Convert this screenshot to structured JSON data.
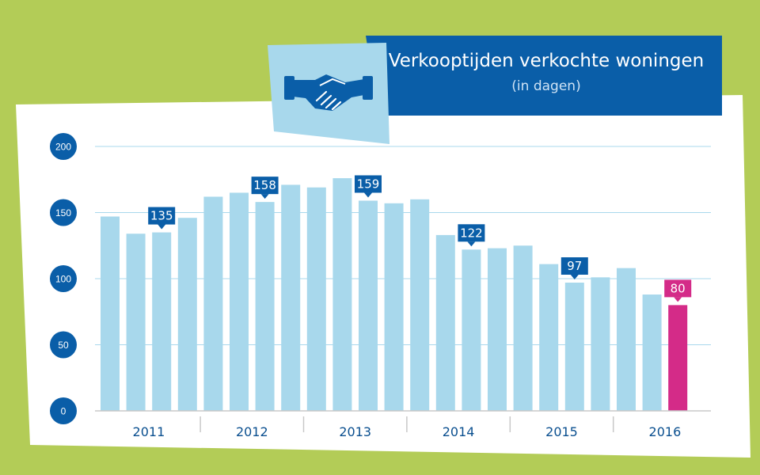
{
  "header": {
    "title": "Verkooptijden verkochte woningen",
    "subtitle": "(in dagen)",
    "icon": "handshake-icon"
  },
  "colors": {
    "background": "#b3cc57",
    "panel": "#ffffff",
    "banner": "#0a5ea8",
    "icon_box": "#a8d8ec",
    "bar": "#a8d8ec",
    "highlight": "#d42b88",
    "label_blue": "#0a5ea8",
    "grid": "#a8d8ec"
  },
  "chart_data": {
    "type": "bar",
    "title": "Verkooptijden verkochte woningen",
    "subtitle": "(in dagen)",
    "xlabel": "",
    "ylabel": "",
    "ylim": [
      0,
      200
    ],
    "yticks": [
      0,
      50,
      100,
      150,
      200
    ],
    "grid": true,
    "years": [
      "2011",
      "2012",
      "2013",
      "2014",
      "2015",
      "2016"
    ],
    "quarters_per_year": 4,
    "values": [
      147,
      134,
      135,
      146,
      162,
      165,
      158,
      171,
      169,
      176,
      159,
      157,
      160,
      133,
      122,
      123,
      125,
      111,
      97,
      101,
      108,
      88,
      80
    ],
    "callouts": [
      {
        "index": 2,
        "value": 135,
        "highlight": false
      },
      {
        "index": 6,
        "value": 158,
        "highlight": false
      },
      {
        "index": 10,
        "value": 159,
        "highlight": false
      },
      {
        "index": 14,
        "value": 122,
        "highlight": false
      },
      {
        "index": 18,
        "value": 97,
        "highlight": false
      },
      {
        "index": 22,
        "value": 80,
        "highlight": true
      }
    ]
  }
}
